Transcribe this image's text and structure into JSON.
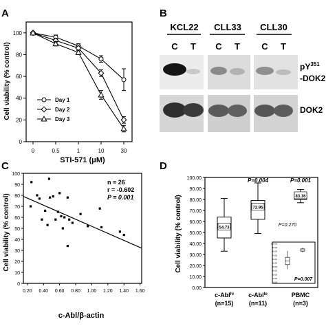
{
  "panels": {
    "a": "A",
    "b": "B",
    "c": "C",
    "d": "D"
  },
  "chart_data": [
    {
      "panel": "A",
      "type": "line",
      "xlabel": "STI-571 (μM)",
      "ylabel": "Cell viability (% control)",
      "categories": [
        "0",
        "0.5",
        "1",
        "10",
        "30"
      ],
      "y_ticks": [
        "0",
        "20",
        "40",
        "60",
        "80",
        "100"
      ],
      "ylim": [
        0,
        110
      ],
      "legend_position": "bottom-left",
      "series": [
        {
          "name": "Day 1",
          "marker": "circle",
          "values": [
            100,
            96,
            88,
            76,
            57
          ],
          "errors": [
            1,
            2,
            2,
            3,
            10
          ]
        },
        {
          "name": "Day 2",
          "marker": "diamond",
          "values": [
            100,
            93,
            86,
            63,
            20
          ],
          "errors": [
            1,
            2,
            2,
            3,
            3
          ]
        },
        {
          "name": "Day 3",
          "marker": "triangle",
          "values": [
            100,
            90,
            82,
            43,
            12
          ],
          "errors": [
            1,
            2,
            2,
            4,
            3
          ]
        }
      ]
    },
    {
      "panel": "B",
      "type": "blot",
      "groups": [
        "KCL22",
        "CLL33",
        "CLL30"
      ],
      "lanes": [
        "C",
        "T",
        "C",
        "T",
        "C",
        "T"
      ],
      "row_labels": [
        "pY351-DOK2",
        "DOK2"
      ],
      "row_label_main": "pY",
      "row_label_sup": "351",
      "row_label_tail": "-DOK2",
      "row_label_2": "DOK2"
    },
    {
      "panel": "C",
      "type": "scatter",
      "xlabel": "c-Abl/β-actin",
      "ylabel": "Cell viability (% control)",
      "x_ticks": [
        "0.20",
        "0.40",
        "0.60",
        "0.80",
        "1.00",
        "1.20",
        "1.40",
        "1.60"
      ],
      "y_ticks": [
        "0",
        "10",
        "20",
        "30",
        "40",
        "50",
        "60",
        "70",
        "80",
        "90",
        "100"
      ],
      "xlim": [
        0.15,
        1.62
      ],
      "ylim": [
        0,
        100
      ],
      "stats": [
        "n = 26",
        "r = -0.602",
        "P = 0.001"
      ],
      "regression": {
        "x": [
          0.15,
          1.62
        ],
        "y": [
          79,
          32
        ]
      },
      "points": [
        {
          "x": 0.25,
          "y": 92
        },
        {
          "x": 0.47,
          "y": 95
        },
        {
          "x": 0.24,
          "y": 70
        },
        {
          "x": 0.32,
          "y": 80
        },
        {
          "x": 0.35,
          "y": 77
        },
        {
          "x": 0.38,
          "y": 58
        },
        {
          "x": 0.42,
          "y": 66
        },
        {
          "x": 0.45,
          "y": 53
        },
        {
          "x": 0.48,
          "y": 78
        },
        {
          "x": 0.52,
          "y": 79
        },
        {
          "x": 0.55,
          "y": 58
        },
        {
          "x": 0.58,
          "y": 65
        },
        {
          "x": 0.6,
          "y": 82
        },
        {
          "x": 0.62,
          "y": 61
        },
        {
          "x": 0.66,
          "y": 60
        },
        {
          "x": 0.7,
          "y": 78
        },
        {
          "x": 0.64,
          "y": 50
        },
        {
          "x": 0.72,
          "y": 58
        },
        {
          "x": 0.76,
          "y": 55
        },
        {
          "x": 0.86,
          "y": 63
        },
        {
          "x": 0.7,
          "y": 34
        },
        {
          "x": 0.95,
          "y": 52
        },
        {
          "x": 1.1,
          "y": 68
        },
        {
          "x": 1.12,
          "y": 51
        },
        {
          "x": 1.35,
          "y": 47
        },
        {
          "x": 1.4,
          "y": 44
        }
      ]
    },
    {
      "panel": "D",
      "type": "box",
      "ylabel": "Cell viability (% control)",
      "y_ticks": [
        "0.00",
        "10.00",
        "20.00",
        "30.00",
        "40.00",
        "50.00",
        "60.00",
        "70.00",
        "80.00",
        "90.00",
        "100.00"
      ],
      "ylim": [
        0,
        100
      ],
      "boxes": [
        {
          "label": "c-Abl",
          "label_sup": "hi",
          "n": "(n=15)",
          "min": 33,
          "q1": 45,
          "median": 54.73,
          "q3": 64,
          "max": 81,
          "median_label": "54.73"
        },
        {
          "label": "c-Abl",
          "label_sup": "lo",
          "n": "(n=11)",
          "min": 49,
          "q1": 62,
          "median": 72.95,
          "q3": 79,
          "max": 95,
          "median_label": "72.95"
        },
        {
          "label": "PBMC",
          "label_sup": "",
          "n": "(n=3)",
          "min": 77,
          "q1": 80,
          "median": 83.16,
          "q3": 86,
          "max": 89,
          "median_label": "83.16"
        }
      ],
      "p_values": [
        {
          "box": 1,
          "text": "P=0.004"
        },
        {
          "box": 2,
          "text": "P=0.001"
        },
        {
          "box": 2,
          "text": "P=0.270"
        }
      ],
      "inset": {
        "y_ticks": [
          "100.00",
          "90.00",
          "80.00",
          "70.00",
          "60.00",
          "50.00",
          "40.00",
          "30.00",
          "20.00",
          "10.00",
          "0.00"
        ],
        "p_text": "P=0.007",
        "boxes": [
          {
            "min": 33,
            "q1": 45,
            "median": 55,
            "q3": 64,
            "max": 81
          },
          {
            "min": 77,
            "q1": 80,
            "median": 83,
            "q3": 86,
            "max": 89
          }
        ]
      }
    }
  ]
}
